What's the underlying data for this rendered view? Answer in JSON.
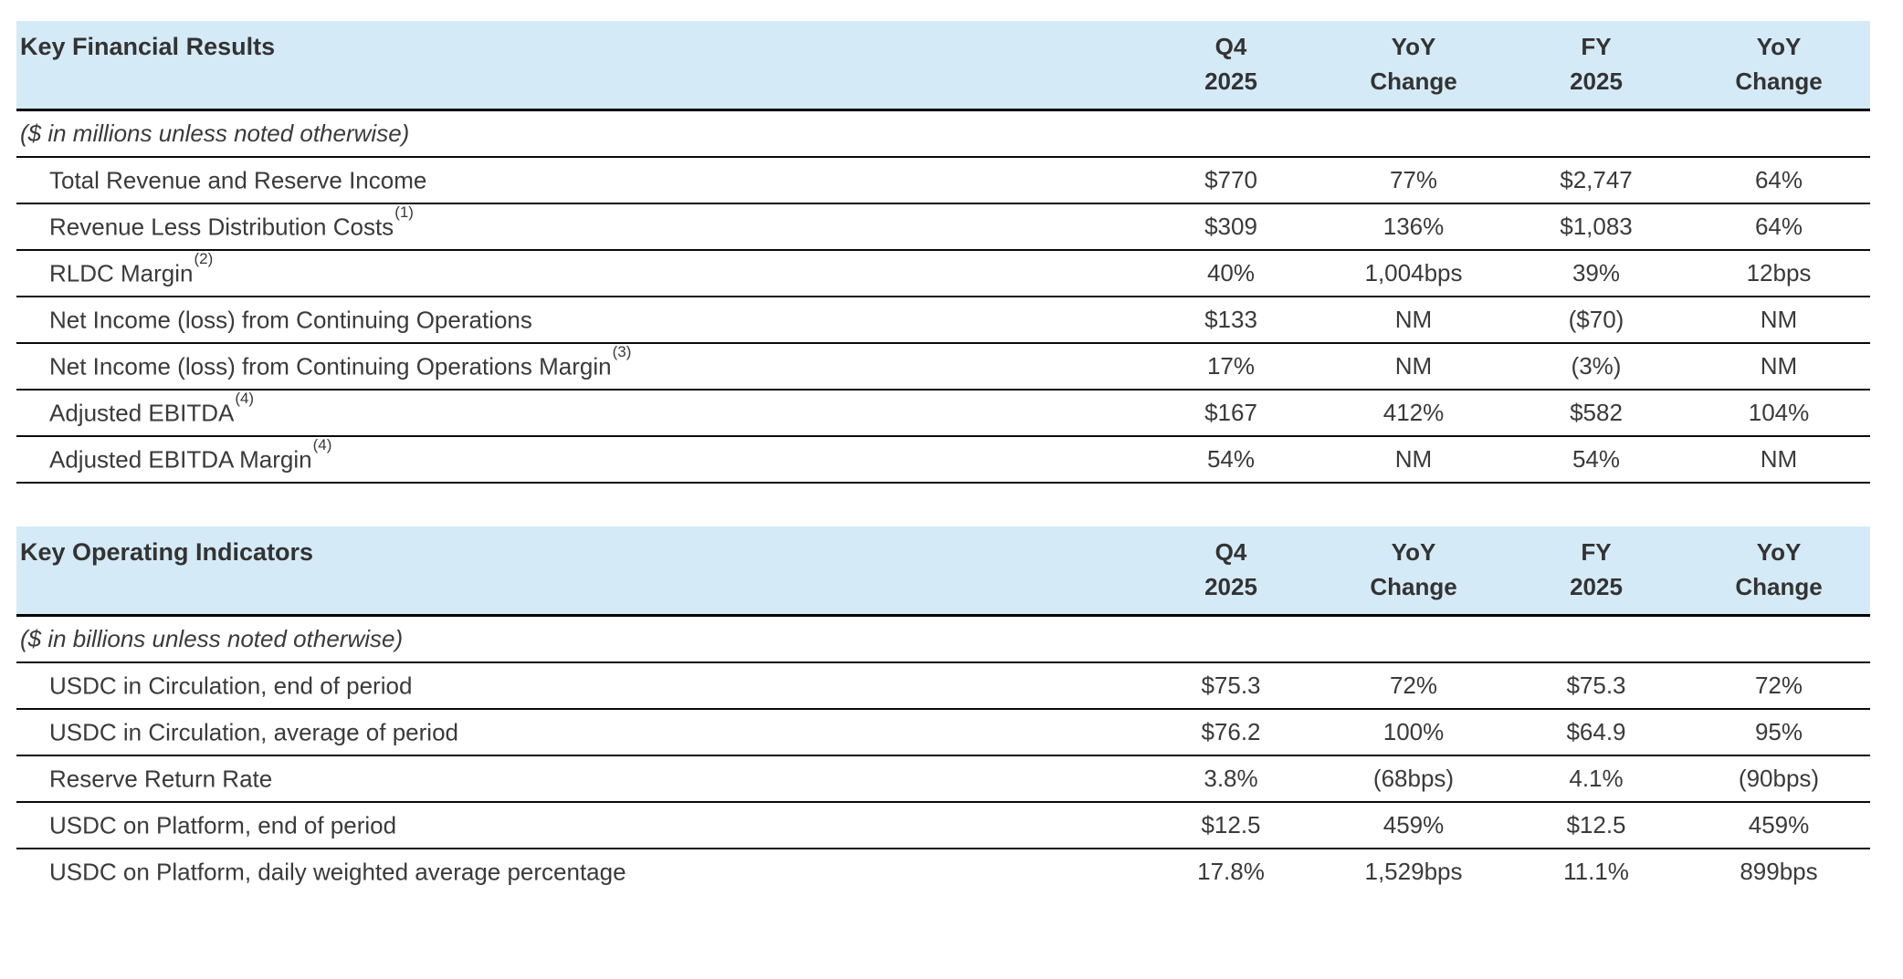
{
  "theme": {
    "header_bg": "#d5eaf7",
    "rule_color": "#0a0a0a",
    "text_color": "#3a3a3a",
    "title_color": "#333333"
  },
  "columns": [
    {
      "line1": "Q4",
      "line2": "2025"
    },
    {
      "line1": "YoY",
      "line2": "Change"
    },
    {
      "line1": "FY",
      "line2": "2025"
    },
    {
      "line1": "YoY",
      "line2": "Change"
    }
  ],
  "tables": [
    {
      "title": "Key Financial Results",
      "units_note": "($ in millions unless noted otherwise)",
      "rows": [
        {
          "label": "Total Revenue and Reserve Income",
          "footnote": "",
          "values": [
            "$770",
            "77%",
            "$2,747",
            "64%"
          ]
        },
        {
          "label": "Revenue Less Distribution Costs",
          "footnote": "(1)",
          "values": [
            "$309",
            "136%",
            "$1,083",
            "64%"
          ]
        },
        {
          "label": "RLDC Margin",
          "footnote": "(2)",
          "values": [
            "40%",
            "1,004bps",
            "39%",
            "12bps"
          ]
        },
        {
          "label": "Net Income (loss) from Continuing Operations",
          "footnote": "",
          "values": [
            "$133",
            "NM",
            "($70)",
            "NM"
          ]
        },
        {
          "label": "Net Income (loss) from Continuing Operations Margin",
          "footnote": "(3)",
          "values": [
            "17%",
            "NM",
            "(3%)",
            "NM"
          ]
        },
        {
          "label": "Adjusted EBITDA",
          "footnote": "(4)",
          "values": [
            "$167",
            "412%",
            "$582",
            "104%"
          ]
        },
        {
          "label": "Adjusted EBITDA Margin",
          "footnote": "(4)",
          "values": [
            "54%",
            "NM",
            "54%",
            "NM"
          ]
        }
      ]
    },
    {
      "title": "Key Operating Indicators",
      "units_note": "($ in billions unless noted otherwise)",
      "rows": [
        {
          "label": "USDC in Circulation, end of period",
          "footnote": "",
          "values": [
            "$75.3",
            "72%",
            "$75.3",
            "72%"
          ]
        },
        {
          "label": "USDC in Circulation, average of period",
          "footnote": "",
          "values": [
            "$76.2",
            "100%",
            "$64.9",
            "95%"
          ]
        },
        {
          "label": "Reserve Return Rate",
          "footnote": "",
          "values": [
            "3.8%",
            "(68bps)",
            "4.1%",
            "(90bps)"
          ]
        },
        {
          "label": "USDC on Platform, end of period",
          "footnote": "",
          "values": [
            "$12.5",
            "459%",
            "$12.5",
            "459%"
          ]
        },
        {
          "label": "USDC on Platform, daily weighted average percentage",
          "footnote": "",
          "values": [
            "17.8%",
            "1,529bps",
            "11.1%",
            "899bps"
          ]
        }
      ]
    }
  ]
}
